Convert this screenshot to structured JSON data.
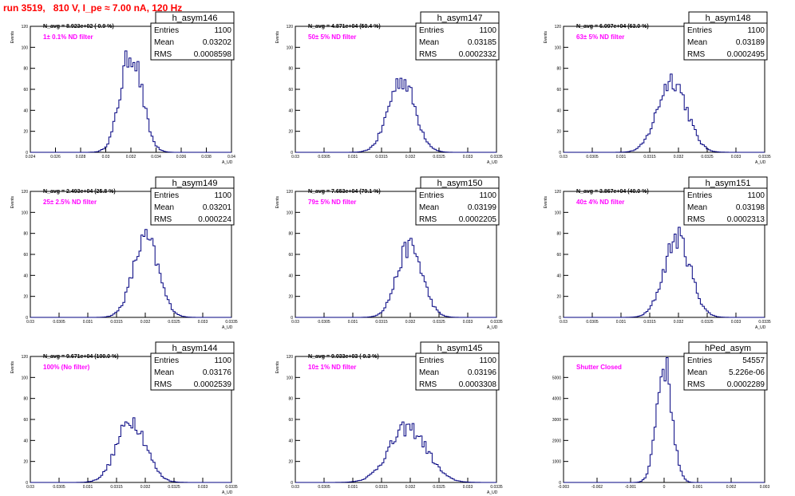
{
  "page_title": "run 3519,   810 V, I_pe ≈ 7.00 nA, 120 Hz",
  "colors": {
    "title": "#ff0000",
    "hist": "#000080",
    "note": "#ff00ff",
    "frame": "#000000"
  },
  "chart_data": [
    {
      "type": "histogram",
      "name": "h_asym146",
      "navg": "N_avg = 8.923e+02 ( 0.9 %)",
      "note": "1± 0.1% ND filter",
      "stats": {
        "Entries": "1100",
        "Mean": "0.03202",
        "RMS": "0.0008598"
      },
      "ylabel": "Events",
      "xlabel": "A_UD",
      "xlim": [
        0.024,
        0.04
      ],
      "ylim": [
        0,
        120
      ],
      "xticks": [
        "0.024",
        "0.026",
        "0.028",
        "0.03",
        "0.032",
        "0.034",
        "0.036",
        "0.038",
        "0.04"
      ],
      "yticks": [
        "0",
        "20",
        "40",
        "60",
        "80",
        "100",
        "120"
      ],
      "peak": {
        "mean": 0.03202,
        "sigma": 0.00086,
        "height": 95
      }
    },
    {
      "type": "histogram",
      "name": "h_asym147",
      "navg": "N_avg = 4.871e+04 (50.4 %)",
      "note": "50± 5% ND filter",
      "stats": {
        "Entries": "1100",
        "Mean": "0.03185",
        "RMS": "0.0002332"
      },
      "ylabel": "Events",
      "xlabel": "A_UD",
      "xlim": [
        0.03,
        0.0335
      ],
      "ylim": [
        0,
        120
      ],
      "xticks": [
        "0.03",
        "0.0305",
        "0.031",
        "0.0315",
        "0.032",
        "0.0325",
        "0.033",
        "0.0335"
      ],
      "yticks": [
        "0",
        "20",
        "40",
        "60",
        "80",
        "100",
        "120"
      ],
      "peak": {
        "mean": 0.03185,
        "sigma": 0.00023,
        "height": 70
      }
    },
    {
      "type": "histogram",
      "name": "h_asym148",
      "navg": "N_avg = 6.097e+04 (63.0 %)",
      "note": "63± 5% ND filter",
      "stats": {
        "Entries": "1100",
        "Mean": "0.03189",
        "RMS": "0.0002495"
      },
      "ylabel": "Events",
      "xlabel": "A_UD",
      "xlim": [
        0.03,
        0.0335
      ],
      "ylim": [
        0,
        120
      ],
      "xticks": [
        "0.03",
        "0.0305",
        "0.031",
        "0.0315",
        "0.032",
        "0.0325",
        "0.033",
        "0.0335"
      ],
      "yticks": [
        "0",
        "20",
        "40",
        "60",
        "80",
        "100",
        "120"
      ],
      "peak": {
        "mean": 0.03189,
        "sigma": 0.00025,
        "height": 70
      }
    },
    {
      "type": "histogram",
      "name": "h_asym149",
      "navg": "N_avg = 2.493e+04 (25.8 %)",
      "note": "25± 2.5% ND filter",
      "stats": {
        "Entries": "1100",
        "Mean": "0.03201",
        "RMS": "0.000224"
      },
      "ylabel": "Events",
      "xlabel": "A_UD",
      "xlim": [
        0.03,
        0.0335
      ],
      "ylim": [
        0,
        120
      ],
      "xticks": [
        "0.03",
        "0.0305",
        "0.031",
        "0.0315",
        "0.032",
        "0.0325",
        "0.033",
        "0.0335"
      ],
      "yticks": [
        "0",
        "20",
        "40",
        "60",
        "80",
        "100",
        "120"
      ],
      "peak": {
        "mean": 0.03201,
        "sigma": 0.00022,
        "height": 75
      }
    },
    {
      "type": "histogram",
      "name": "h_asym150",
      "navg": "N_avg = 7.653e+04 (79.1 %)",
      "note": "79± 5% ND filter",
      "stats": {
        "Entries": "1100",
        "Mean": "0.03199",
        "RMS": "0.0002205"
      },
      "ylabel": "Events",
      "xlabel": "A_UD",
      "xlim": [
        0.03,
        0.0335
      ],
      "ylim": [
        0,
        120
      ],
      "xticks": [
        "0.03",
        "0.0305",
        "0.031",
        "0.0315",
        "0.032",
        "0.0325",
        "0.033",
        "0.0335"
      ],
      "yticks": [
        "0",
        "20",
        "40",
        "60",
        "80",
        "100",
        "120"
      ],
      "peak": {
        "mean": 0.03199,
        "sigma": 0.00022,
        "height": 68
      }
    },
    {
      "type": "histogram",
      "name": "h_asym151",
      "navg": "N_avg = 3.867e+04 (40.0 %)",
      "note": "40± 4% ND filter",
      "stats": {
        "Entries": "1100",
        "Mean": "0.03198",
        "RMS": "0.0002313"
      },
      "ylabel": "Events",
      "xlabel": "A_UD",
      "xlim": [
        0.03,
        0.0335
      ],
      "ylim": [
        0,
        120
      ],
      "xticks": [
        "0.03",
        "0.0305",
        "0.031",
        "0.0315",
        "0.032",
        "0.0325",
        "0.033",
        "0.0335"
      ],
      "yticks": [
        "0",
        "20",
        "40",
        "60",
        "80",
        "100",
        "120"
      ],
      "peak": {
        "mean": 0.03198,
        "sigma": 0.00023,
        "height": 76
      }
    },
    {
      "type": "histogram",
      "name": "h_asym144",
      "navg": "N_avg = 9.671e+04 (100.0 %)",
      "note": "100% (No filter)",
      "stats": {
        "Entries": "1100",
        "Mean": "0.03176",
        "RMS": "0.0002539"
      },
      "ylabel": "Events",
      "xlabel": "A_UD",
      "xlim": [
        0.03,
        0.0335
      ],
      "ylim": [
        0,
        120
      ],
      "xticks": [
        "0.03",
        "0.0305",
        "0.031",
        "0.0315",
        "0.032",
        "0.0325",
        "0.033",
        "0.0335"
      ],
      "yticks": [
        "0",
        "20",
        "40",
        "60",
        "80",
        "100",
        "120"
      ],
      "peak": {
        "mean": 0.03176,
        "sigma": 0.00025,
        "height": 60
      }
    },
    {
      "type": "histogram",
      "name": "h_asym145",
      "navg": "N_avg = 9.033e+03 ( 9.3 %)",
      "note": "10± 1% ND filter",
      "stats": {
        "Entries": "1100",
        "Mean": "0.03196",
        "RMS": "0.0003308"
      },
      "ylabel": "Events",
      "xlabel": "A_UD",
      "xlim": [
        0.03,
        0.0335
      ],
      "ylim": [
        0,
        120
      ],
      "xticks": [
        "0.03",
        "0.0305",
        "0.031",
        "0.0315",
        "0.032",
        "0.0325",
        "0.033",
        "0.0335"
      ],
      "yticks": [
        "0",
        "20",
        "40",
        "60",
        "80",
        "100",
        "120"
      ],
      "peak": {
        "mean": 0.03196,
        "sigma": 0.00033,
        "height": 52
      }
    },
    {
      "type": "histogram",
      "name": "hPed_asym",
      "navg": "",
      "note": "Shutter Closed",
      "stats": {
        "Entries": "54557",
        "Mean": "5.226e-06",
        "RMS": "0.0002289"
      },
      "ylabel": "",
      "xlabel": "",
      "xlim": [
        -0.003,
        0.003
      ],
      "ylim": [
        0,
        6000
      ],
      "xticks": [
        "-0.003",
        "-0.002",
        "-0.001",
        "0",
        "0.001",
        "0.002",
        "0.003"
      ],
      "yticks": [
        "0",
        "1000",
        "2000",
        "3000",
        "4000",
        "5000"
      ],
      "peak": {
        "mean": 5.2e-06,
        "sigma": 0.00023,
        "height": 5600
      }
    }
  ]
}
